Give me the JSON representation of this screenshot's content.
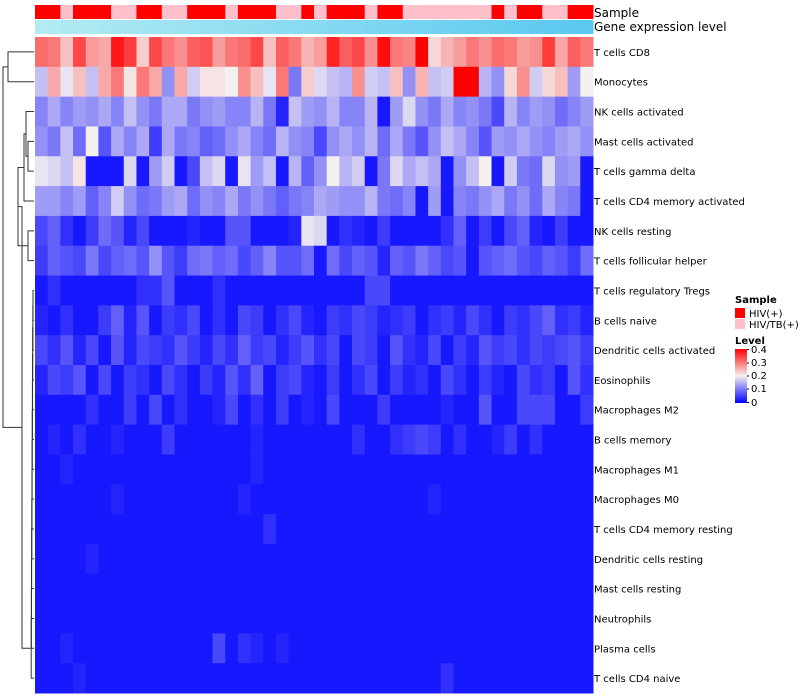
{
  "chart_data": {
    "type": "heatmap",
    "annotation_tracks": [
      "Sample",
      "Gene expression level"
    ],
    "rows": [
      "T cells CD8",
      "Monocytes",
      "NK cells activated",
      "Mast cells activated",
      "T cells gamma delta",
      "T cells CD4 memory activated",
      "NK cells resting",
      "T cells follicular helper",
      "T cells regulatory  Tregs",
      "B cells naive",
      "Dendritic cells activated",
      "Eosinophils",
      "Macrophages M2",
      "B cells memory",
      "Macrophages M1",
      "Macrophages M0",
      "T cells CD4 memory resting",
      "Dendritic cells resting",
      "Mast cells resting",
      "Neutrophils",
      "Plasma cells",
      "T cells CD4 naive"
    ],
    "n_columns": 44,
    "sample_groups": [
      "HIV(+)",
      "HIV(+)",
      "HIV/TB(+)",
      "HIV(+)",
      "HIV(+)",
      "HIV(+)",
      "HIV/TB(+)",
      "HIV/TB(+)",
      "HIV(+)",
      "HIV(+)",
      "HIV/TB(+)",
      "HIV/TB(+)",
      "HIV(+)",
      "HIV(+)",
      "HIV(+)",
      "HIV/TB(+)",
      "HIV(+)",
      "HIV(+)",
      "HIV(+)",
      "HIV/TB(+)",
      "HIV/TB(+)",
      "HIV(+)",
      "HIV/TB(+)",
      "HIV(+)",
      "HIV(+)",
      "HIV(+)",
      "HIV/TB(+)",
      "HIV(+)",
      "HIV(+)",
      "HIV/TB(+)",
      "HIV/TB(+)",
      "HIV/TB(+)",
      "HIV/TB(+)",
      "HIV/TB(+)",
      "HIV/TB(+)",
      "HIV/TB(+)",
      "HIV(+)",
      "HIV/TB(+)",
      "HIV(+)",
      "HIV(+)",
      "HIV/TB(+)",
      "HIV/TB(+)",
      "HIV(+)",
      "HIV(+)"
    ],
    "sample_colors": {
      "HIV(+)": "#ff0000",
      "HIV/TB(+)": "#ffc0cb"
    },
    "level_track_colors": [
      "#b2ebf2",
      "#5bc8f0"
    ],
    "color_scale": {
      "stops": [
        0,
        0.2,
        0.4
      ],
      "colors": [
        "#0000ff",
        "#f5f0f0",
        "#ff0000"
      ]
    },
    "legend": {
      "sample_title": "Sample",
      "sample_entries": [
        "HIV(+)",
        "HIV/TB(+)"
      ],
      "level_title": "Level",
      "level_ticks": [
        "0.4",
        "0.3",
        "0.2",
        "0.1",
        "0"
      ],
      "position": "right"
    },
    "values": [
      [
        0.31,
        0.3,
        0.24,
        0.34,
        0.27,
        0.26,
        0.38,
        0.35,
        0.23,
        0.34,
        0.3,
        0.28,
        0.32,
        0.33,
        0.27,
        0.3,
        0.31,
        0.34,
        0.24,
        0.32,
        0.3,
        0.25,
        0.27,
        0.37,
        0.32,
        0.34,
        0.28,
        0.39,
        0.3,
        0.29,
        0.4,
        0.22,
        0.25,
        0.27,
        0.3,
        0.28,
        0.31,
        0.3,
        0.27,
        0.28,
        0.35,
        0.26,
        0.32,
        0.3
      ],
      [
        0.16,
        0.26,
        0.19,
        0.24,
        0.16,
        0.26,
        0.3,
        0.21,
        0.3,
        0.26,
        0.12,
        0.26,
        0.17,
        0.21,
        0.21,
        0.2,
        0.28,
        0.24,
        0.19,
        0.3,
        0.1,
        0.23,
        0.18,
        0.16,
        0.15,
        0.28,
        0.17,
        0.16,
        0.24,
        0.12,
        0.25,
        0.16,
        0.17,
        0.4,
        0.4,
        0.15,
        0.12,
        0.22,
        0.28,
        0.17,
        0.22,
        0.24,
        0.13,
        0.2
      ],
      [
        0.11,
        0.14,
        0.11,
        0.13,
        0.12,
        0.14,
        0.11,
        0.16,
        0.12,
        0.1,
        0.14,
        0.14,
        0.1,
        0.12,
        0.13,
        0.11,
        0.11,
        0.15,
        0.1,
        0.03,
        0.16,
        0.13,
        0.12,
        0.15,
        0.11,
        0.11,
        0.15,
        0.02,
        0.13,
        0.18,
        0.12,
        0.1,
        0.14,
        0.11,
        0.12,
        0.1,
        0.06,
        0.15,
        0.11,
        0.13,
        0.12,
        0.09,
        0.11,
        0.13
      ],
      [
        0.12,
        0.1,
        0.16,
        0.09,
        0.2,
        0.07,
        0.14,
        0.11,
        0.14,
        0.05,
        0.14,
        0.1,
        0.11,
        0.08,
        0.09,
        0.12,
        0.14,
        0.11,
        0.09,
        0.15,
        0.12,
        0.11,
        0.06,
        0.12,
        0.14,
        0.12,
        0.15,
        0.09,
        0.14,
        0.1,
        0.07,
        0.12,
        0.16,
        0.14,
        0.11,
        0.07,
        0.13,
        0.12,
        0.14,
        0.12,
        0.11,
        0.13,
        0.14,
        0.12
      ],
      [
        0.19,
        0.18,
        0.16,
        0.21,
        0.02,
        0.02,
        0.02,
        0.18,
        0.02,
        0.13,
        0.17,
        0.02,
        0.06,
        0.16,
        0.18,
        0.02,
        0.19,
        0.13,
        0.16,
        0.02,
        0.15,
        0.08,
        0.12,
        0.2,
        0.15,
        0.17,
        0.02,
        0.1,
        0.18,
        0.14,
        0.16,
        0.14,
        0.02,
        0.12,
        0.16,
        0.2,
        0.02,
        0.17,
        0.1,
        0.09,
        0.18,
        0.12,
        0.13,
        0.02
      ],
      [
        0.13,
        0.13,
        0.11,
        0.13,
        0.08,
        0.11,
        0.17,
        0.12,
        0.09,
        0.1,
        0.13,
        0.14,
        0.09,
        0.12,
        0.11,
        0.14,
        0.1,
        0.12,
        0.1,
        0.08,
        0.1,
        0.11,
        0.14,
        0.13,
        0.12,
        0.12,
        0.15,
        0.1,
        0.09,
        0.11,
        0.02,
        0.13,
        0.02,
        0.11,
        0.1,
        0.12,
        0.14,
        0.1,
        0.12,
        0.09,
        0.14,
        0.11,
        0.1,
        0.02
      ],
      [
        0.06,
        0.08,
        0.04,
        0.02,
        0.05,
        0.09,
        0.07,
        0.03,
        0.06,
        0.02,
        0.02,
        0.02,
        0.03,
        0.02,
        0.02,
        0.07,
        0.07,
        0.02,
        0.02,
        0.02,
        0.03,
        0.19,
        0.18,
        0.02,
        0.04,
        0.03,
        0.02,
        0.05,
        0.02,
        0.02,
        0.02,
        0.02,
        0.04,
        0.08,
        0.02,
        0.05,
        0.02,
        0.06,
        0.08,
        0.03,
        0.02,
        0.05,
        0.02,
        0.02
      ],
      [
        0.05,
        0.08,
        0.07,
        0.06,
        0.1,
        0.06,
        0.08,
        0.09,
        0.07,
        0.12,
        0.07,
        0.05,
        0.09,
        0.1,
        0.08,
        0.09,
        0.06,
        0.08,
        0.11,
        0.07,
        0.07,
        0.09,
        0.02,
        0.09,
        0.06,
        0.08,
        0.07,
        0.03,
        0.08,
        0.07,
        0.1,
        0.08,
        0.06,
        0.07,
        0.02,
        0.07,
        0.08,
        0.09,
        0.07,
        0.06,
        0.08,
        0.07,
        0.05,
        0.09
      ],
      [
        0.02,
        0.04,
        0.02,
        0.02,
        0.02,
        0.02,
        0.02,
        0.02,
        0.04,
        0.04,
        0.07,
        0.02,
        0.02,
        0.02,
        0.04,
        0.02,
        0.02,
        0.02,
        0.02,
        0.02,
        0.02,
        0.02,
        0.02,
        0.02,
        0.02,
        0.02,
        0.06,
        0.06,
        0.02,
        0.02,
        0.02,
        0.02,
        0.02,
        0.02,
        0.02,
        0.02,
        0.02,
        0.02,
        0.02,
        0.02,
        0.02,
        0.02,
        0.02,
        0.02
      ],
      [
        0.03,
        0.02,
        0.04,
        0.02,
        0.02,
        0.05,
        0.08,
        0.03,
        0.07,
        0.02,
        0.05,
        0.04,
        0.06,
        0.02,
        0.04,
        0.02,
        0.06,
        0.05,
        0.02,
        0.04,
        0.06,
        0.03,
        0.02,
        0.05,
        0.04,
        0.06,
        0.05,
        0.03,
        0.04,
        0.05,
        0.02,
        0.04,
        0.05,
        0.03,
        0.06,
        0.04,
        0.02,
        0.05,
        0.04,
        0.06,
        0.08,
        0.04,
        0.05,
        0.03
      ],
      [
        0.06,
        0.04,
        0.07,
        0.03,
        0.06,
        0.02,
        0.07,
        0.03,
        0.06,
        0.05,
        0.04,
        0.07,
        0.05,
        0.03,
        0.06,
        0.04,
        0.08,
        0.05,
        0.06,
        0.03,
        0.05,
        0.07,
        0.04,
        0.06,
        0.02,
        0.06,
        0.05,
        0.02,
        0.07,
        0.04,
        0.03,
        0.06,
        0.02,
        0.05,
        0.03,
        0.07,
        0.05,
        0.06,
        0.04,
        0.06,
        0.05,
        0.06,
        0.07,
        0.05
      ],
      [
        0.03,
        0.06,
        0.05,
        0.07,
        0.02,
        0.06,
        0.02,
        0.05,
        0.04,
        0.02,
        0.06,
        0.04,
        0.02,
        0.05,
        0.03,
        0.07,
        0.04,
        0.08,
        0.02,
        0.05,
        0.06,
        0.03,
        0.02,
        0.05,
        0.02,
        0.04,
        0.06,
        0.02,
        0.05,
        0.03,
        0.04,
        0.02,
        0.06,
        0.04,
        0.02,
        0.05,
        0.03,
        0.02,
        0.06,
        0.04,
        0.05,
        0.02,
        0.07,
        0.04
      ],
      [
        0.02,
        0.02,
        0.02,
        0.02,
        0.04,
        0.02,
        0.02,
        0.05,
        0.02,
        0.06,
        0.02,
        0.04,
        0.02,
        0.02,
        0.03,
        0.06,
        0.02,
        0.04,
        0.02,
        0.05,
        0.02,
        0.03,
        0.02,
        0.06,
        0.02,
        0.02,
        0.02,
        0.05,
        0.02,
        0.02,
        0.02,
        0.02,
        0.03,
        0.02,
        0.02,
        0.07,
        0.02,
        0.02,
        0.06,
        0.06,
        0.06,
        0.02,
        0.02,
        0.05
      ],
      [
        0.02,
        0.03,
        0.02,
        0.04,
        0.02,
        0.02,
        0.03,
        0.02,
        0.02,
        0.02,
        0.05,
        0.02,
        0.02,
        0.02,
        0.02,
        0.02,
        0.02,
        0.03,
        0.02,
        0.02,
        0.02,
        0.02,
        0.02,
        0.02,
        0.02,
        0.04,
        0.02,
        0.02,
        0.04,
        0.05,
        0.06,
        0.05,
        0.02,
        0.04,
        0.02,
        0.02,
        0.03,
        0.05,
        0.02,
        0.04,
        0.02,
        0.02,
        0.02,
        0.02
      ],
      [
        0.02,
        0.02,
        0.03,
        0.02,
        0.02,
        0.02,
        0.02,
        0.02,
        0.02,
        0.02,
        0.02,
        0.02,
        0.02,
        0.02,
        0.02,
        0.02,
        0.02,
        0.03,
        0.02,
        0.02,
        0.02,
        0.02,
        0.02,
        0.02,
        0.02,
        0.02,
        0.02,
        0.02,
        0.02,
        0.02,
        0.02,
        0.02,
        0.02,
        0.02,
        0.02,
        0.02,
        0.02,
        0.02,
        0.02,
        0.02,
        0.02,
        0.02,
        0.02,
        0.02
      ],
      [
        0.02,
        0.02,
        0.02,
        0.02,
        0.02,
        0.02,
        0.03,
        0.02,
        0.02,
        0.02,
        0.02,
        0.02,
        0.02,
        0.02,
        0.02,
        0.02,
        0.03,
        0.02,
        0.02,
        0.02,
        0.02,
        0.02,
        0.02,
        0.02,
        0.02,
        0.02,
        0.02,
        0.02,
        0.02,
        0.02,
        0.02,
        0.03,
        0.02,
        0.02,
        0.02,
        0.02,
        0.02,
        0.02,
        0.02,
        0.02,
        0.02,
        0.02,
        0.02,
        0.02
      ],
      [
        0.02,
        0.02,
        0.02,
        0.02,
        0.02,
        0.02,
        0.02,
        0.02,
        0.02,
        0.02,
        0.02,
        0.02,
        0.02,
        0.02,
        0.02,
        0.02,
        0.02,
        0.02,
        0.04,
        0.02,
        0.02,
        0.02,
        0.02,
        0.02,
        0.02,
        0.02,
        0.02,
        0.02,
        0.02,
        0.02,
        0.02,
        0.02,
        0.02,
        0.02,
        0.02,
        0.02,
        0.02,
        0.02,
        0.02,
        0.02,
        0.02,
        0.02,
        0.02,
        0.02
      ],
      [
        0.02,
        0.02,
        0.02,
        0.02,
        0.03,
        0.02,
        0.02,
        0.02,
        0.02,
        0.02,
        0.02,
        0.02,
        0.02,
        0.02,
        0.02,
        0.02,
        0.02,
        0.02,
        0.02,
        0.02,
        0.02,
        0.02,
        0.02,
        0.02,
        0.02,
        0.02,
        0.02,
        0.02,
        0.02,
        0.02,
        0.02,
        0.02,
        0.02,
        0.02,
        0.02,
        0.02,
        0.02,
        0.02,
        0.02,
        0.02,
        0.02,
        0.02,
        0.02,
        0.02
      ],
      [
        0.02,
        0.02,
        0.02,
        0.02,
        0.02,
        0.02,
        0.02,
        0.02,
        0.02,
        0.02,
        0.02,
        0.02,
        0.02,
        0.02,
        0.02,
        0.02,
        0.02,
        0.02,
        0.02,
        0.02,
        0.02,
        0.02,
        0.02,
        0.02,
        0.02,
        0.02,
        0.02,
        0.02,
        0.02,
        0.02,
        0.02,
        0.02,
        0.02,
        0.02,
        0.02,
        0.02,
        0.02,
        0.02,
        0.02,
        0.02,
        0.02,
        0.02,
        0.02,
        0.02
      ],
      [
        0.02,
        0.02,
        0.02,
        0.02,
        0.02,
        0.02,
        0.02,
        0.02,
        0.02,
        0.02,
        0.02,
        0.02,
        0.02,
        0.02,
        0.02,
        0.02,
        0.02,
        0.02,
        0.02,
        0.02,
        0.02,
        0.02,
        0.02,
        0.02,
        0.02,
        0.02,
        0.02,
        0.02,
        0.02,
        0.02,
        0.02,
        0.02,
        0.02,
        0.02,
        0.02,
        0.02,
        0.02,
        0.02,
        0.02,
        0.02,
        0.02,
        0.02,
        0.02,
        0.02
      ],
      [
        0.02,
        0.02,
        0.03,
        0.02,
        0.02,
        0.02,
        0.02,
        0.02,
        0.02,
        0.02,
        0.02,
        0.02,
        0.02,
        0.02,
        0.06,
        0.02,
        0.04,
        0.03,
        0.02,
        0.03,
        0.02,
        0.02,
        0.02,
        0.02,
        0.02,
        0.02,
        0.02,
        0.02,
        0.02,
        0.02,
        0.02,
        0.02,
        0.02,
        0.02,
        0.02,
        0.02,
        0.02,
        0.02,
        0.02,
        0.02,
        0.02,
        0.02,
        0.02,
        0.02
      ],
      [
        0.02,
        0.02,
        0.02,
        0.03,
        0.02,
        0.02,
        0.02,
        0.02,
        0.02,
        0.02,
        0.02,
        0.02,
        0.02,
        0.02,
        0.02,
        0.02,
        0.02,
        0.02,
        0.02,
        0.02,
        0.02,
        0.02,
        0.02,
        0.02,
        0.02,
        0.02,
        0.02,
        0.02,
        0.02,
        0.02,
        0.02,
        0.02,
        0.04,
        0.02,
        0.02,
        0.02,
        0.02,
        0.02,
        0.02,
        0.02,
        0.02,
        0.02,
        0.02,
        0.02
      ]
    ]
  }
}
